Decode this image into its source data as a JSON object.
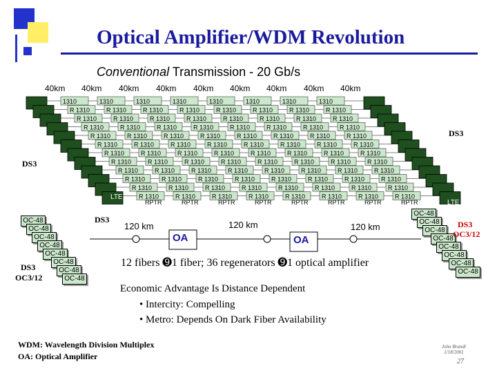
{
  "slide": {
    "title": "Optical Amplifier/WDM Revolution",
    "subtitle_italic": "Conventional",
    "subtitle_rest": " Transmission - 20 Gb/s",
    "span_labels": [
      "40km",
      "40km",
      "40km",
      "40km",
      "40km",
      "40km",
      "40km",
      "40km",
      "40km"
    ],
    "regen_label": "1310",
    "regen_prefix": "R",
    "rptr_label": "RPTR",
    "lte_label": "LTE",
    "ds3_left": "DS3",
    "ds3_right": "DS3",
    "ds3_mid": "DS3",
    "oc48": "OC-48",
    "ds3_oc12_left_1": "DS3",
    "ds3_oc12_left_2": "OC3/12",
    "ds3_right_bottom": "DS3",
    "oc3_12_right": "OC3/12",
    "len_labels": [
      "120 km",
      "120 km",
      "120 km"
    ],
    "oa_labels": [
      "OA",
      "OA"
    ],
    "fibers_line": "12 fibers ➒1 fiber; 36 regenerators ➒1 optical amplifier",
    "econ_title": "Economic Advantage Is Distance Dependent",
    "bullet1": "• Intercity: Compelling",
    "bullet2": "• Metro:    Depends On Dark Fiber Availability",
    "footnote1": "WDM: Wavelength Division Multiplex",
    "footnote2": "OA:     Optical Amplifier",
    "author": "John Brandl",
    "date": "1/18/2001",
    "page_number": "27",
    "colors": {
      "title": "#1a1a9e",
      "accent_yellow": "#ffee66",
      "accent_blue": "#2233cc",
      "regen_fill": "#cce8cc",
      "lte_fill": "#004400",
      "oa_fill": "#ffffff"
    }
  }
}
